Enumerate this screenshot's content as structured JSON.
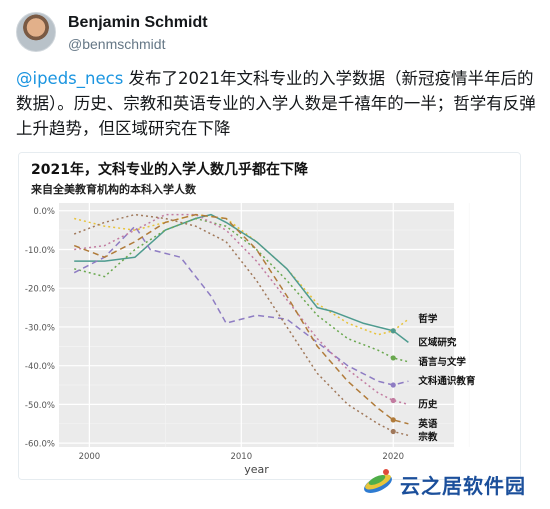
{
  "tweet": {
    "author_name": "Benjamin Schmidt",
    "author_handle": "@benmschmidt",
    "mention": "@ipeds_necs",
    "text_rest": " 发布了2021年文科专业的入学数据（新冠疫情半年后的数据）。历史、宗教和英语专业的入学人数是千禧年的一半；哲学有反弹上升趋势，但区域研究在下降"
  },
  "colors": {
    "mention": "#1b95e0",
    "philosophy": "#e8c33a",
    "area_studies": "#4e9b8f",
    "languages": "#6aa84f",
    "general_humanities": "#8e7cc3",
    "history": "#c27ba0",
    "english": "#b07b3a",
    "religion": "#a0785a"
  },
  "chart_data": {
    "type": "line",
    "title": "2021年，文科专业的入学人数几乎都在下降",
    "subtitle": "来自全美教育机构的本科入学人数",
    "xlabel": "year",
    "ylabel": "",
    "xlim": [
      1998,
      2024
    ],
    "ylim": [
      -61,
      2
    ],
    "x_ticks": [
      2000,
      2010,
      2020
    ],
    "y_ticks": [
      0,
      -10,
      -20,
      -30,
      -40,
      -50,
      -60
    ],
    "y_tick_labels": [
      "0.0%",
      "-10.0%",
      "-20.0%",
      "-30.0%",
      "-40.0%",
      "-50.0%",
      "-60.0%"
    ],
    "grid": true,
    "legend": "right-end labels",
    "series": [
      {
        "name": "哲学",
        "color_key": "philosophy",
        "dash": "2,3",
        "x": [
          1999,
          2001,
          2003,
          2005,
          2007,
          2009,
          2011,
          2013,
          2015,
          2017,
          2019,
          2020,
          2021
        ],
        "y": [
          -2,
          -4,
          -5,
          -3,
          -1,
          -2,
          -8,
          -15,
          -24,
          -29,
          -32,
          -31,
          -28
        ]
      },
      {
        "name": "区域研究",
        "color_key": "area_studies",
        "dash": "",
        "x": [
          1999,
          2001,
          2003,
          2005,
          2007,
          2008,
          2009,
          2011,
          2013,
          2015,
          2016,
          2018,
          2020,
          2021
        ],
        "y": [
          -13,
          -13,
          -12,
          -5,
          -2,
          -1,
          -3,
          -8,
          -15,
          -25,
          -26,
          -29,
          -31,
          -34
        ]
      },
      {
        "name": "语言与文学",
        "color_key": "languages",
        "dash": "2,3",
        "x": [
          1999,
          2001,
          2003,
          2005,
          2007,
          2009,
          2011,
          2013,
          2015,
          2017,
          2019,
          2020,
          2021
        ],
        "y": [
          -15,
          -17,
          -10,
          -5,
          -2,
          -4,
          -10,
          -18,
          -27,
          -33,
          -36,
          -38,
          -39
        ]
      },
      {
        "name": "文科通识教育",
        "color_key": "general_humanities",
        "dash": "6,4",
        "x": [
          1999,
          2001,
          2003,
          2004,
          2006,
          2008,
          2009,
          2011,
          2013,
          2015,
          2017,
          2019,
          2020,
          2021
        ],
        "y": [
          -16,
          -12,
          -4,
          -10,
          -12,
          -22,
          -29,
          -27,
          -28,
          -34,
          -40,
          -44,
          -45,
          -44
        ]
      },
      {
        "name": "历史",
        "color_key": "history",
        "dash": "2,3",
        "x": [
          1999,
          2001,
          2003,
          2005,
          2007,
          2009,
          2011,
          2013,
          2015,
          2017,
          2019,
          2020,
          2021
        ],
        "y": [
          -10,
          -9,
          -5,
          -1,
          -1,
          -5,
          -13,
          -23,
          -33,
          -41,
          -47,
          -49,
          -50
        ]
      },
      {
        "name": "英语",
        "color_key": "english",
        "dash": "6,4",
        "x": [
          1999,
          2001,
          2003,
          2005,
          2007,
          2009,
          2011,
          2013,
          2015,
          2017,
          2019,
          2020,
          2021
        ],
        "y": [
          -9,
          -12,
          -8,
          -3,
          -1,
          -2,
          -10,
          -22,
          -35,
          -44,
          -51,
          -54,
          -55
        ]
      },
      {
        "name": "宗教",
        "color_key": "religion",
        "dash": "2,3",
        "x": [
          1999,
          2001,
          2003,
          2005,
          2007,
          2009,
          2011,
          2013,
          2015,
          2017,
          2019,
          2020,
          2021
        ],
        "y": [
          -6,
          -3,
          -1,
          -2,
          -4,
          -8,
          -18,
          -30,
          -42,
          -50,
          -55,
          -57,
          -58
        ]
      }
    ]
  },
  "watermark": {
    "text": "云之居软件园"
  }
}
